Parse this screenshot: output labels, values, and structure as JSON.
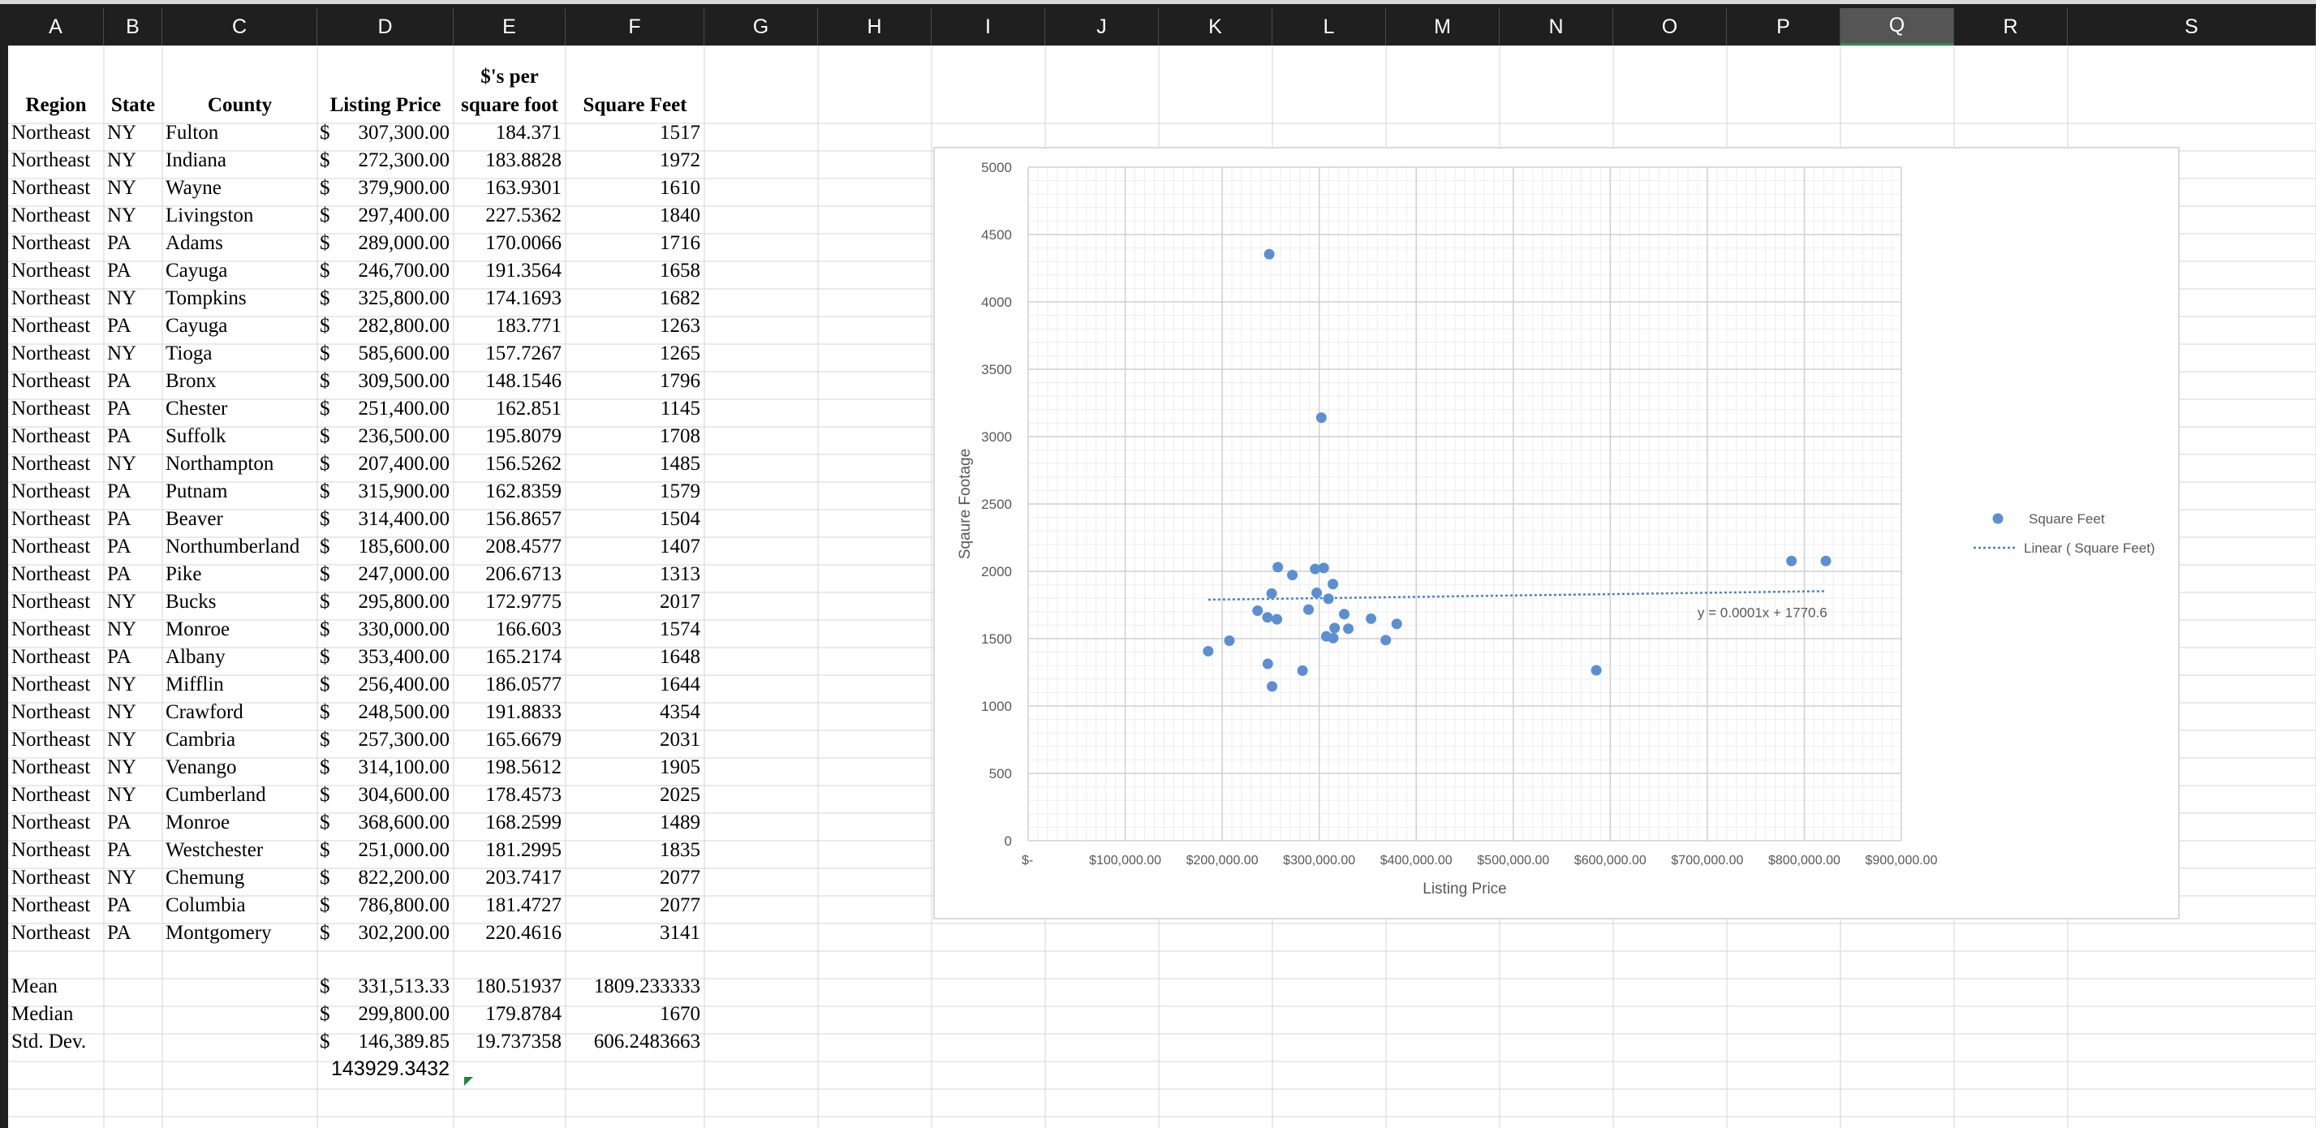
{
  "columns": [
    "A",
    "B",
    "C",
    "D",
    "E",
    "F",
    "G",
    "H",
    "I",
    "J",
    "K",
    "L",
    "M",
    "N",
    "O",
    "P",
    "Q",
    "R",
    "S"
  ],
  "selected_column": "Q",
  "headers": {
    "region": "Region",
    "state": "State",
    "county": "County",
    "listing_price": "Listing Price",
    "per_sqft_line1": "$'s per",
    "per_sqft_line2": "square foot",
    "square_feet": "Square Feet"
  },
  "rows": [
    {
      "region": "Northeast",
      "state": "NY",
      "county": "Fulton",
      "price_sym": "$",
      "price": "307,300.00",
      "per_sqft": "184.371",
      "sqft": "1517"
    },
    {
      "region": "Northeast",
      "state": "NY",
      "county": "Indiana",
      "price_sym": "$",
      "price": "272,300.00",
      "per_sqft": "183.8828",
      "sqft": "1972"
    },
    {
      "region": "Northeast",
      "state": "NY",
      "county": "Wayne",
      "price_sym": "$",
      "price": "379,900.00",
      "per_sqft": "163.9301",
      "sqft": "1610"
    },
    {
      "region": "Northeast",
      "state": "NY",
      "county": "Livingston",
      "price_sym": "$",
      "price": "297,400.00",
      "per_sqft": "227.5362",
      "sqft": "1840"
    },
    {
      "region": "Northeast",
      "state": "PA",
      "county": "Adams",
      "price_sym": "$",
      "price": "289,000.00",
      "per_sqft": "170.0066",
      "sqft": "1716"
    },
    {
      "region": "Northeast",
      "state": "PA",
      "county": "Cayuga",
      "price_sym": "$",
      "price": "246,700.00",
      "per_sqft": "191.3564",
      "sqft": "1658"
    },
    {
      "region": "Northeast",
      "state": "NY",
      "county": "Tompkins",
      "price_sym": "$",
      "price": "325,800.00",
      "per_sqft": "174.1693",
      "sqft": "1682"
    },
    {
      "region": "Northeast",
      "state": "PA",
      "county": "Cayuga",
      "price_sym": "$",
      "price": "282,800.00",
      "per_sqft": "183.771",
      "sqft": "1263"
    },
    {
      "region": "Northeast",
      "state": "NY",
      "county": "Tioga",
      "price_sym": "$",
      "price": "585,600.00",
      "per_sqft": "157.7267",
      "sqft": "1265"
    },
    {
      "region": "Northeast",
      "state": "PA",
      "county": "Bronx",
      "price_sym": "$",
      "price": "309,500.00",
      "per_sqft": "148.1546",
      "sqft": "1796"
    },
    {
      "region": "Northeast",
      "state": "PA",
      "county": "Chester",
      "price_sym": "$",
      "price": "251,400.00",
      "per_sqft": "162.851",
      "sqft": "1145"
    },
    {
      "region": "Northeast",
      "state": "PA",
      "county": "Suffolk",
      "price_sym": "$",
      "price": "236,500.00",
      "per_sqft": "195.8079",
      "sqft": "1708"
    },
    {
      "region": "Northeast",
      "state": "NY",
      "county": "Northampton",
      "price_sym": "$",
      "price": "207,400.00",
      "per_sqft": "156.5262",
      "sqft": "1485"
    },
    {
      "region": "Northeast",
      "state": "PA",
      "county": "Putnam",
      "price_sym": "$",
      "price": "315,900.00",
      "per_sqft": "162.8359",
      "sqft": "1579"
    },
    {
      "region": "Northeast",
      "state": "PA",
      "county": "Beaver",
      "price_sym": "$",
      "price": "314,400.00",
      "per_sqft": "156.8657",
      "sqft": "1504"
    },
    {
      "region": "Northeast",
      "state": "PA",
      "county": "Northumberland",
      "price_sym": "$",
      "price": "185,600.00",
      "per_sqft": "208.4577",
      "sqft": "1407"
    },
    {
      "region": "Northeast",
      "state": "PA",
      "county": "Pike",
      "price_sym": "$",
      "price": "247,000.00",
      "per_sqft": "206.6713",
      "sqft": "1313"
    },
    {
      "region": "Northeast",
      "state": "NY",
      "county": "Bucks",
      "price_sym": "$",
      "price": "295,800.00",
      "per_sqft": "172.9775",
      "sqft": "2017"
    },
    {
      "region": "Northeast",
      "state": "NY",
      "county": "Monroe",
      "price_sym": "$",
      "price": "330,000.00",
      "per_sqft": "166.603",
      "sqft": "1574"
    },
    {
      "region": "Northeast",
      "state": "PA",
      "county": "Albany",
      "price_sym": "$",
      "price": "353,400.00",
      "per_sqft": "165.2174",
      "sqft": "1648"
    },
    {
      "region": "Northeast",
      "state": "NY",
      "county": "Mifflin",
      "price_sym": "$",
      "price": "256,400.00",
      "per_sqft": "186.0577",
      "sqft": "1644"
    },
    {
      "region": "Northeast",
      "state": "NY",
      "county": "Crawford",
      "price_sym": "$",
      "price": "248,500.00",
      "per_sqft": "191.8833",
      "sqft": "4354"
    },
    {
      "region": "Northeast",
      "state": "NY",
      "county": "Cambria",
      "price_sym": "$",
      "price": "257,300.00",
      "per_sqft": "165.6679",
      "sqft": "2031"
    },
    {
      "region": "Northeast",
      "state": "NY",
      "county": "Venango",
      "price_sym": "$",
      "price": "314,100.00",
      "per_sqft": "198.5612",
      "sqft": "1905"
    },
    {
      "region": "Northeast",
      "state": "NY",
      "county": "Cumberland",
      "price_sym": "$",
      "price": "304,600.00",
      "per_sqft": "178.4573",
      "sqft": "2025"
    },
    {
      "region": "Northeast",
      "state": "PA",
      "county": "Monroe",
      "price_sym": "$",
      "price": "368,600.00",
      "per_sqft": "168.2599",
      "sqft": "1489"
    },
    {
      "region": "Northeast",
      "state": "PA",
      "county": "Westchester",
      "price_sym": "$",
      "price": "251,000.00",
      "per_sqft": "181.2995",
      "sqft": "1835"
    },
    {
      "region": "Northeast",
      "state": "NY",
      "county": "Chemung",
      "price_sym": "$",
      "price": "822,200.00",
      "per_sqft": "203.7417",
      "sqft": "2077"
    },
    {
      "region": "Northeast",
      "state": "PA",
      "county": "Columbia",
      "price_sym": "$",
      "price": "786,800.00",
      "per_sqft": "181.4727",
      "sqft": "2077"
    },
    {
      "region": "Northeast",
      "state": "PA",
      "county": "Montgomery",
      "price_sym": "$",
      "price": "302,200.00",
      "per_sqft": "220.4616",
      "sqft": "3141"
    }
  ],
  "stats": [
    {
      "label": "Mean",
      "price_sym": "$",
      "price": "331,513.33",
      "per_sqft": "180.51937",
      "sqft": "1809.233333"
    },
    {
      "label": "Median",
      "price_sym": "$",
      "price": "299,800.00",
      "per_sqft": "179.8784",
      "sqft": "1670"
    },
    {
      "label": "Std. Dev.",
      "price_sym": "$",
      "price": "146,389.85",
      "per_sqft": "19.737358",
      "sqft": "606.2483663"
    }
  ],
  "extra_value": "143929.3432",
  "chart_data": {
    "type": "scatter",
    "xlabel": "Listing Price",
    "ylabel": "Sqaure Footage",
    "xlim": [
      0,
      900000
    ],
    "ylim": [
      0,
      5000
    ],
    "x_ticks": [
      "$-",
      "$100,000.00",
      "$200,000.00",
      "$300,000.00",
      "$400,000.00",
      "$500,000.00",
      "$600,000.00",
      "$700,000.00",
      "$800,000.00",
      "$900,000.00"
    ],
    "y_ticks": [
      "0",
      "500",
      "1000",
      "1500",
      "2000",
      "2500",
      "3000",
      "3500",
      "4000",
      "4500",
      "5000"
    ],
    "grid": true,
    "legend_position": "right",
    "series": [
      {
        "name": "Square Feet",
        "color": "#5b8fd1",
        "x": [
          307300,
          272300,
          379900,
          297400,
          289000,
          246700,
          325800,
          282800,
          585600,
          309500,
          251400,
          236500,
          207400,
          315900,
          314400,
          185600,
          247000,
          295800,
          330000,
          353400,
          256400,
          248500,
          257300,
          314100,
          304600,
          368600,
          251000,
          822200,
          786800,
          302200
        ],
        "y": [
          1517,
          1972,
          1610,
          1840,
          1716,
          1658,
          1682,
          1263,
          1265,
          1796,
          1145,
          1708,
          1485,
          1579,
          1504,
          1407,
          1313,
          2017,
          1574,
          1648,
          1644,
          4354,
          2031,
          1905,
          2025,
          1489,
          1835,
          2077,
          2077,
          3141
        ]
      }
    ],
    "trendline": {
      "name": "Linear ( Square Feet)",
      "slope": 0.0001,
      "intercept": 1770.6,
      "x_start": 185600,
      "x_end": 822200,
      "equation_label": "y = 0.0001x + 1770.6",
      "color": "#4a7fc9"
    }
  }
}
